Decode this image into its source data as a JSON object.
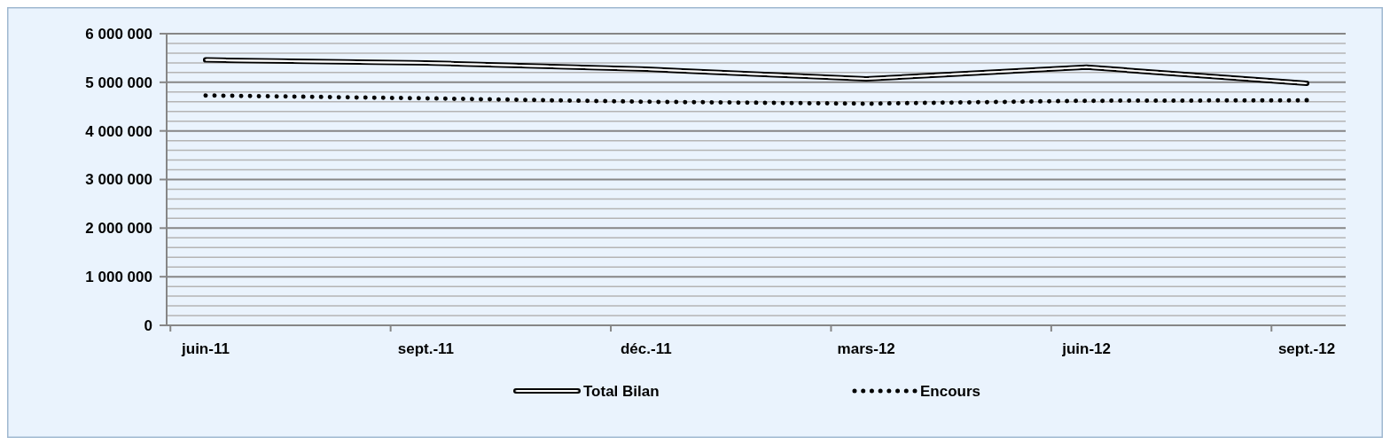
{
  "chart_data": {
    "type": "line",
    "categories": [
      "juin-11",
      "sept.-11",
      "déc.-11",
      "mars-12",
      "juin-12",
      "sept.-12"
    ],
    "series": [
      {
        "name": "Total Bilan",
        "color": "#000000",
        "line_style": "solid",
        "values": [
          5460000,
          5400000,
          5270000,
          5070000,
          5310000,
          4980000
        ]
      },
      {
        "name": "Encours",
        "color": "#000000",
        "line_style": "dotted",
        "values": [
          4730000,
          4670000,
          4600000,
          4560000,
          4620000,
          4630000
        ]
      }
    ],
    "ylim": [
      0,
      6000000
    ],
    "yticks": [
      0,
      {
        "value": 200000,
        "label": null
      },
      {
        "value": 400000,
        "label": null
      },
      {
        "value": 600000,
        "label": null
      },
      {
        "value": 800000,
        "label": null
      },
      {
        "value": 1000000,
        "label": "1 000 000"
      },
      {
        "value": 1200000,
        "label": null
      },
      {
        "value": 1400000,
        "label": null
      },
      {
        "value": 1600000,
        "label": null
      },
      {
        "value": 1800000,
        "label": null
      },
      {
        "value": 2000000,
        "label": "2 000 000"
      },
      {
        "value": 2200000,
        "label": null
      },
      {
        "value": 2400000,
        "label": null
      },
      {
        "value": 2600000,
        "label": null
      },
      {
        "value": 2800000,
        "label": null
      },
      {
        "value": 3000000,
        "label": "3 000 000"
      },
      {
        "value": 3200000,
        "label": null
      },
      {
        "value": 3400000,
        "label": null
      },
      {
        "value": 3600000,
        "label": null
      },
      {
        "value": 3800000,
        "label": null
      },
      {
        "value": 4000000,
        "label": "4 000 000"
      },
      {
        "value": 4200000,
        "label": null
      },
      {
        "value": 4400000,
        "label": null
      },
      {
        "value": 4600000,
        "label": null
      },
      {
        "value": 4800000,
        "label": null
      },
      {
        "value": 5000000,
        "label": "5 000 000"
      },
      {
        "value": 5200000,
        "label": null
      },
      {
        "value": 5400000,
        "label": null
      },
      {
        "value": 5600000,
        "label": null
      },
      {
        "value": 5800000,
        "label": null
      },
      {
        "value": 6000000,
        "label": "6 000 000"
      }
    ],
    "grid": "y",
    "legend": "bottom",
    "marker": "none"
  }
}
